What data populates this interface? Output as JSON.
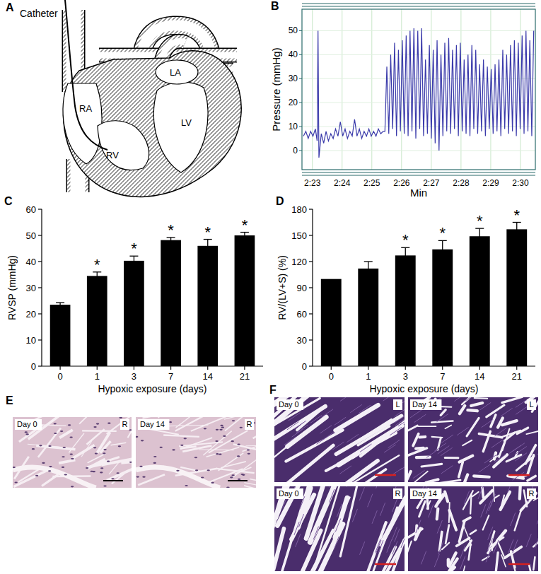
{
  "chart_data": [
    {
      "type": "line",
      "title": "B",
      "x_label": "Min",
      "y_label": "Pressure (mmHg)",
      "color": "#3a3aaa",
      "grid": true,
      "xlim": [
        142.65,
        150.5
      ],
      "ylim": [
        -8,
        59
      ],
      "xticks": [
        {
          "value": 143,
          "label": "2:23"
        },
        {
          "value": 144,
          "label": "2:24"
        },
        {
          "value": 145,
          "label": "2:25"
        },
        {
          "value": 146,
          "label": "2:26"
        },
        {
          "value": 147,
          "label": "2:27"
        },
        {
          "value": 148,
          "label": "2:28"
        },
        {
          "value": 149,
          "label": "2:29"
        },
        {
          "value": 150,
          "label": "2:30"
        }
      ],
      "yticks": [
        0,
        10,
        20,
        30,
        40,
        50
      ],
      "x": [
        142.7,
        142.78,
        142.86,
        142.94,
        143.02,
        143.1,
        143.16,
        143.19,
        143.22,
        143.3,
        143.38,
        143.46,
        143.54,
        143.62,
        143.7,
        143.78,
        143.86,
        143.94,
        144.02,
        144.1,
        144.18,
        144.26,
        144.34,
        144.42,
        144.5,
        144.58,
        144.66,
        144.74,
        144.82,
        144.9,
        144.98,
        145.06,
        145.14,
        145.22,
        145.3,
        145.38,
        145.44,
        145.505,
        145.57,
        145.635,
        145.7,
        145.765,
        145.83,
        145.895,
        145.96,
        146.025,
        146.09,
        146.155,
        146.22,
        146.285,
        146.35,
        146.415,
        146.48,
        146.545,
        146.61,
        146.675,
        146.74,
        146.805,
        146.87,
        146.935,
        147.0,
        147.065,
        147.13,
        147.195,
        147.26,
        147.325,
        147.39,
        147.455,
        147.52,
        147.585,
        147.65,
        147.715,
        147.78,
        147.845,
        147.91,
        147.975,
        148.04,
        148.105,
        148.17,
        148.235,
        148.3,
        148.365,
        148.43,
        148.495,
        148.56,
        148.625,
        148.69,
        148.755,
        148.82,
        148.885,
        148.95,
        149.015,
        149.08,
        149.145,
        149.21,
        149.275,
        149.34,
        149.405,
        149.47,
        149.535,
        149.6,
        149.665,
        149.73,
        149.795,
        149.86,
        149.925,
        149.99,
        150.055,
        150.12,
        150.185,
        150.25,
        150.315,
        150.38,
        150.445
      ],
      "values": [
        6,
        8,
        5,
        8,
        6,
        9,
        4,
        50,
        -3,
        7,
        3,
        8,
        4,
        7,
        5,
        9,
        6,
        12,
        6,
        9,
        5,
        8,
        6,
        13,
        6,
        9,
        5,
        8,
        6,
        9,
        6,
        8,
        6,
        9,
        7,
        8,
        8,
        35,
        7,
        40,
        9,
        45,
        6,
        42,
        8,
        46,
        7,
        48,
        6,
        50,
        8,
        51,
        5,
        50,
        9,
        51,
        6,
        38,
        7,
        44,
        5,
        42,
        3,
        46,
        0,
        40,
        6,
        45,
        8,
        47,
        7,
        42,
        9,
        44,
        6,
        45,
        8,
        38,
        7,
        40,
        6,
        44,
        9,
        42,
        7,
        36,
        8,
        38,
        6,
        35,
        9,
        34,
        7,
        36,
        8,
        38,
        6,
        42,
        9,
        40,
        7,
        44,
        8,
        46,
        6,
        45,
        9,
        48,
        7,
        50,
        8,
        46,
        6,
        50
      ]
    },
    {
      "type": "bar",
      "title": "C",
      "x_label": "Hypoxic exposure (days)",
      "y_label": "RVSP (mmHg)",
      "color": "#000000",
      "categories": [
        "0",
        "1",
        "3",
        "7",
        "14",
        "21"
      ],
      "values": [
        23.5,
        34.5,
        40.3,
        48.2,
        46.0,
        50.0
      ],
      "errors": [
        0.8,
        1.5,
        1.8,
        1.0,
        2.5,
        1.2
      ],
      "annotations": [
        null,
        "*",
        "*",
        "*",
        "*",
        "*"
      ],
      "ylim": [
        0,
        60
      ],
      "yticks": [
        0,
        10,
        20,
        30,
        40,
        50,
        60
      ]
    },
    {
      "type": "bar",
      "title": "D",
      "x_label": "Hypoxic exposure (days)",
      "y_label": "RV/(LV+S) (%)",
      "color": "#000000",
      "categories": [
        "0",
        "1",
        "3",
        "7",
        "14",
        "21"
      ],
      "values": [
        100,
        112,
        127,
        134,
        149,
        157
      ],
      "errors": [
        0,
        8,
        9,
        10,
        9,
        8
      ],
      "annotations": [
        null,
        null,
        "*",
        "*",
        "*",
        "*"
      ],
      "ylim": [
        0,
        180
      ],
      "yticks": [
        0,
        30,
        60,
        90,
        120,
        150,
        180
      ]
    }
  ],
  "diagram": {
    "title": "A",
    "labels": {
      "catheter": "Catheter",
      "ra": "RA",
      "rv": "RV",
      "lv": "LV",
      "la": "LA"
    }
  },
  "histology": [
    {
      "title": "E",
      "images": [
        {
          "day": "Day 0",
          "region": "R"
        },
        {
          "day": "Day 14",
          "region": "R"
        }
      ]
    },
    {
      "title": "F",
      "images": [
        {
          "day": "Day 0",
          "region": "L"
        },
        {
          "day": "Day 14",
          "region": "L"
        },
        {
          "day": "Day 0",
          "region": "R"
        },
        {
          "day": "Day 14",
          "region": "R"
        }
      ]
    }
  ]
}
